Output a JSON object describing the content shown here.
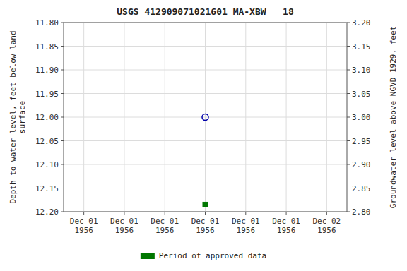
{
  "chart_data": {
    "type": "scatter",
    "title": "USGS 412909071021601 MA-XBW   18",
    "categories": [
      "Dec 01\n1956",
      "Dec 01\n1956",
      "Dec 01\n1956",
      "Dec 01\n1956",
      "Dec 01\n1956",
      "Dec 01\n1956",
      "Dec 02\n1956"
    ],
    "y_label": "Depth to water level, feet below land\nsurface",
    "y2_label": "Groundwater level above NGVD 1929, feet",
    "ylim": [
      12.2,
      11.8
    ],
    "yticks": [
      {
        "value": 11.8,
        "label": "11.80"
      },
      {
        "value": 11.85,
        "label": "11.85"
      },
      {
        "value": 11.9,
        "label": "11.90"
      },
      {
        "value": 11.95,
        "label": "11.95"
      },
      {
        "value": 12.0,
        "label": "12.00"
      },
      {
        "value": 12.05,
        "label": "12.05"
      },
      {
        "value": 12.1,
        "label": "12.10"
      },
      {
        "value": 12.15,
        "label": "12.15"
      },
      {
        "value": 12.2,
        "label": "12.20"
      }
    ],
    "y2lim": [
      2.8,
      3.2
    ],
    "y2ticks": [
      {
        "value": 3.2,
        "label": "3.20"
      },
      {
        "value": 3.15,
        "label": "3.15"
      },
      {
        "value": 3.1,
        "label": "3.10"
      },
      {
        "value": 3.05,
        "label": "3.05"
      },
      {
        "value": 3.0,
        "label": "3.00"
      },
      {
        "value": 2.95,
        "label": "2.95"
      },
      {
        "value": 2.9,
        "label": "2.90"
      },
      {
        "value": 2.85,
        "label": "2.85"
      },
      {
        "value": 2.8,
        "label": "2.80"
      }
    ],
    "grid": true,
    "legend": "bottom",
    "series": [
      {
        "values": [
          null,
          null,
          null,
          12.0,
          null,
          null,
          null
        ],
        "color": "#0000aa",
        "marker": "circle-open"
      },
      {
        "name": "Period of approved data",
        "values": [
          null,
          null,
          null,
          12.185,
          null,
          null,
          null
        ],
        "color": "#007700",
        "marker": "square"
      }
    ]
  }
}
